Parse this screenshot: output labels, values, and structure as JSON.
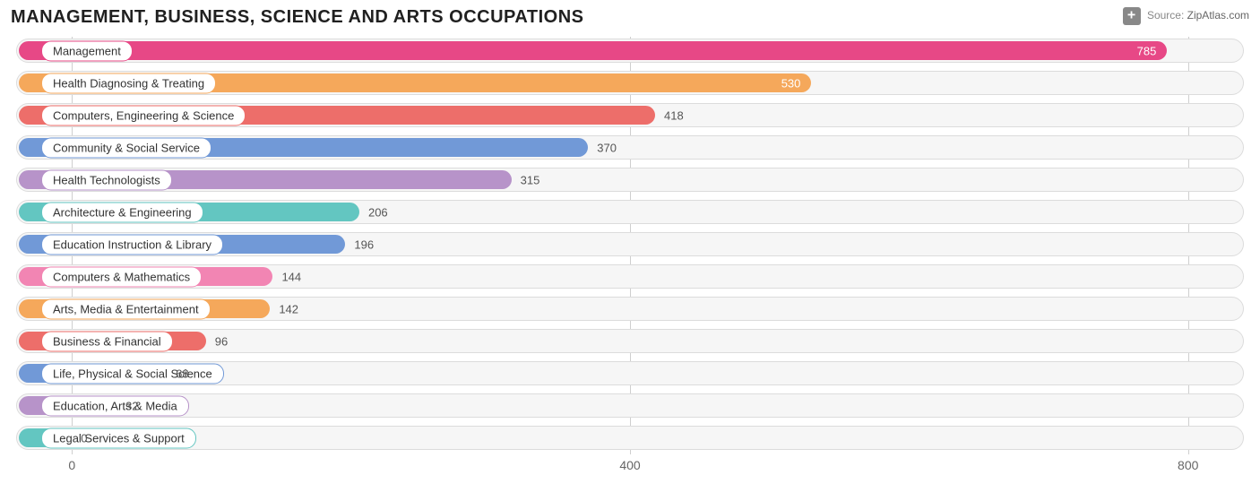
{
  "title": "MANAGEMENT, BUSINESS, SCIENCE AND ARTS OCCUPATIONS",
  "source_label": "Source:",
  "source_name": "ZipAtlas.com",
  "chart": {
    "type": "bar-horizontal",
    "x_min": -40,
    "x_max": 840,
    "x_ticks": [
      0,
      400,
      800
    ],
    "track_bg": "#f6f6f6",
    "track_border": "#dcdcdc",
    "gridline_color": "#cfcfcf",
    "value_color_outside": "#555555",
    "value_color_inside": "#ffffff",
    "label_bg": "#ffffff",
    "label_text_color": "#333333",
    "bars": [
      {
        "label": "Management",
        "value": 785,
        "color": "#e74886",
        "value_inside": true
      },
      {
        "label": "Health Diagnosing & Treating",
        "value": 530,
        "color": "#f5a85b",
        "value_inside": true
      },
      {
        "label": "Computers, Engineering & Science",
        "value": 418,
        "color": "#ed6e6a",
        "value_inside": false
      },
      {
        "label": "Community & Social Service",
        "value": 370,
        "color": "#7199d7",
        "value_inside": false
      },
      {
        "label": "Health Technologists",
        "value": 315,
        "color": "#b793c9",
        "value_inside": false
      },
      {
        "label": "Architecture & Engineering",
        "value": 206,
        "color": "#63c6c1",
        "value_inside": false
      },
      {
        "label": "Education Instruction & Library",
        "value": 196,
        "color": "#7199d7",
        "value_inside": false
      },
      {
        "label": "Computers & Mathematics",
        "value": 144,
        "color": "#f285b3",
        "value_inside": false
      },
      {
        "label": "Arts, Media & Entertainment",
        "value": 142,
        "color": "#f5a85b",
        "value_inside": false
      },
      {
        "label": "Business & Financial",
        "value": 96,
        "color": "#ed6e6a",
        "value_inside": false
      },
      {
        "label": "Life, Physical & Social Science",
        "value": 68,
        "color": "#7199d7",
        "value_inside": false
      },
      {
        "label": "Education, Arts & Media",
        "value": 32,
        "color": "#b793c9",
        "value_inside": false
      },
      {
        "label": "Legal Services & Support",
        "value": 0,
        "color": "#63c6c1",
        "value_inside": false
      }
    ]
  }
}
